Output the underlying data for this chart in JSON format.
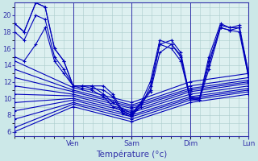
{
  "xlabel": "Température (°c)",
  "bg_color": "#cce8e8",
  "plot_bg": "#ddf0f0",
  "line_color": "#0000bb",
  "grid_color": "#aacccc",
  "tick_color": "#3333aa",
  "ylim": [
    5.5,
    21.5
  ],
  "yticks": [
    6,
    8,
    10,
    12,
    14,
    16,
    18,
    20
  ],
  "xlim": [
    0,
    1.0
  ],
  "day_positions": [
    0.25,
    0.5,
    0.75,
    1.0
  ],
  "day_labels": [
    "Ven",
    "Sam",
    "Dim",
    "Lun"
  ],
  "series": [
    [
      0.0,
      19.0,
      0.04,
      18.0,
      0.09,
      21.5,
      0.13,
      21.0,
      0.17,
      16.0,
      0.21,
      14.5,
      0.25,
      11.5,
      0.29,
      11.5,
      0.33,
      11.5,
      0.38,
      11.5,
      0.42,
      10.5,
      0.46,
      8.5,
      0.5,
      8.0,
      0.54,
      9.5,
      0.58,
      11.0,
      0.62,
      16.5,
      0.67,
      17.0,
      0.71,
      15.5,
      0.75,
      10.0,
      0.79,
      10.0,
      0.83,
      15.0,
      0.88,
      19.0,
      0.92,
      18.5,
      0.96,
      18.5,
      1.0,
      13.0
    ],
    [
      0.0,
      18.0,
      0.04,
      17.0,
      0.09,
      20.0,
      0.13,
      19.5,
      0.17,
      15.0,
      0.21,
      13.5,
      0.25,
      11.5,
      0.29,
      11.5,
      0.33,
      11.2,
      0.38,
      11.0,
      0.42,
      10.2,
      0.46,
      8.2,
      0.5,
      7.8,
      0.54,
      9.3,
      0.58,
      10.8,
      0.62,
      15.5,
      0.67,
      16.5,
      0.71,
      15.2,
      0.75,
      9.8,
      0.79,
      9.8,
      0.83,
      14.5,
      0.88,
      18.5,
      0.92,
      18.2,
      0.96,
      18.0,
      1.0,
      12.5
    ],
    [
      0.0,
      14.5,
      0.25,
      11.3,
      0.5,
      9.5,
      0.75,
      12.0,
      1.0,
      13.0
    ],
    [
      0.0,
      13.5,
      0.25,
      11.0,
      0.5,
      9.2,
      0.75,
      11.5,
      1.0,
      12.5
    ],
    [
      0.0,
      12.5,
      0.25,
      10.8,
      0.5,
      9.0,
      0.75,
      11.2,
      1.0,
      12.2
    ],
    [
      0.0,
      11.5,
      0.25,
      10.5,
      0.5,
      8.8,
      0.75,
      11.0,
      1.0,
      12.0
    ],
    [
      0.0,
      10.5,
      0.25,
      10.3,
      0.5,
      8.5,
      0.75,
      10.8,
      1.0,
      11.8
    ],
    [
      0.0,
      9.5,
      0.25,
      10.0,
      0.5,
      8.3,
      0.75,
      10.5,
      1.0,
      11.5
    ],
    [
      0.0,
      8.5,
      0.25,
      9.8,
      0.5,
      8.0,
      0.75,
      10.2,
      1.0,
      11.2
    ],
    [
      0.0,
      7.5,
      0.25,
      9.5,
      0.5,
      7.8,
      0.75,
      10.0,
      1.0,
      11.0
    ],
    [
      0.0,
      6.5,
      0.25,
      9.3,
      0.5,
      7.5,
      0.75,
      9.8,
      1.0,
      10.8
    ],
    [
      0.0,
      6.0,
      0.25,
      9.0,
      0.5,
      7.2,
      0.75,
      9.5,
      1.0,
      10.5
    ]
  ],
  "curved_series": [
    {
      "pts": [
        0.0,
        19.0,
        0.04,
        18.0,
        0.09,
        21.5,
        0.13,
        21.0,
        0.17,
        16.0,
        0.21,
        14.5,
        0.25,
        11.5,
        0.29,
        11.5,
        0.33,
        11.5,
        0.38,
        10.5,
        0.42,
        9.5,
        0.46,
        8.8,
        0.5,
        8.2,
        0.54,
        9.5,
        0.58,
        12.0,
        0.62,
        17.0,
        0.67,
        16.5,
        0.71,
        15.0,
        0.75,
        10.2,
        0.79,
        10.0,
        0.83,
        14.0,
        0.88,
        18.8,
        0.92,
        18.5,
        0.96,
        18.8,
        1.0,
        13.0
      ]
    },
    {
      "pts": [
        0.0,
        15.0,
        0.04,
        14.5,
        0.09,
        16.5,
        0.13,
        18.5,
        0.17,
        14.5,
        0.21,
        13.0,
        0.25,
        11.5,
        0.29,
        11.2,
        0.33,
        11.0,
        0.38,
        10.2,
        0.42,
        9.0,
        0.46,
        8.5,
        0.5,
        8.0,
        0.54,
        9.0,
        0.58,
        11.5,
        0.62,
        16.5,
        0.67,
        16.0,
        0.71,
        14.5,
        0.75,
        10.0,
        0.79,
        9.8,
        0.83,
        13.5,
        0.88,
        18.5,
        0.92,
        18.2,
        0.96,
        18.5,
        1.0,
        12.5
      ]
    }
  ]
}
